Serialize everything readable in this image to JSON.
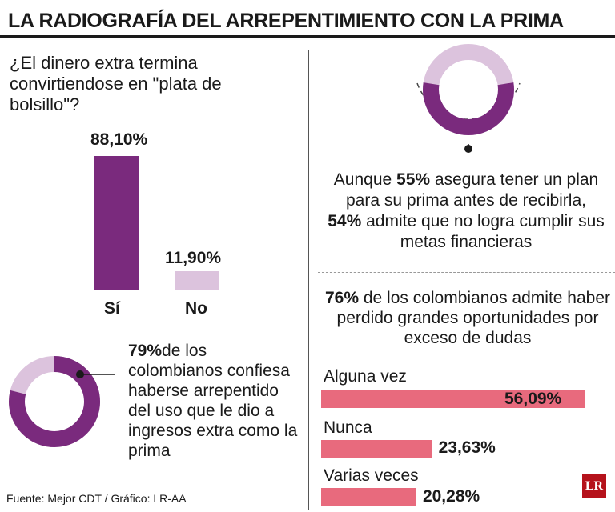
{
  "title": "LA RADIOGRAFÍA DEL ARREPENTIMIENTO CON LA PRIMA",
  "colors": {
    "purple": "#7a2a7d",
    "lilac": "#dcc3dd",
    "pink": "#e86a7d"
  },
  "question": "¿El dinero extra termina convirtiendose en \"plata de bolsillo\"?",
  "panel_79": {
    "highlight": "79%",
    "text": "de los colombianos confiesa haberse arrepentido del uso que le dio a ingresos extra como la prima"
  },
  "panel_55": {
    "h1": "55%",
    "t1": "Aunque ",
    "t2": " asegura tener un plan para su prima antes de recibirla,",
    "h2": "54%",
    "t3": " admite que no logra cumplir sus metas financieras"
  },
  "panel_76": {
    "highlight": "76%",
    "text": " de los colombianos admite haber perdido grandes oportunidades por exceso de dudas"
  },
  "source": "Fuente: Mejor CDT / Gráfico: LR-AA",
  "logo": "LR",
  "chart_data": [
    {
      "type": "bar",
      "categories": [
        "Sí",
        "No"
      ],
      "values": [
        88.1,
        11.9
      ],
      "value_labels": [
        "88,10%",
        "11,90%"
      ],
      "ylim": [
        0,
        100
      ]
    },
    {
      "type": "pie",
      "categories": [
        "",
        ""
      ],
      "values": [
        79,
        21
      ]
    },
    {
      "type": "pie",
      "categories": [
        "",
        ""
      ],
      "values": [
        55,
        45
      ]
    },
    {
      "type": "bar",
      "orientation": "horizontal",
      "categories": [
        "Alguna vez",
        "Nunca",
        "Varias veces"
      ],
      "values": [
        56.09,
        23.63,
        20.28
      ],
      "value_labels": [
        "56,09%",
        "23,63%",
        "20,28%"
      ]
    }
  ]
}
